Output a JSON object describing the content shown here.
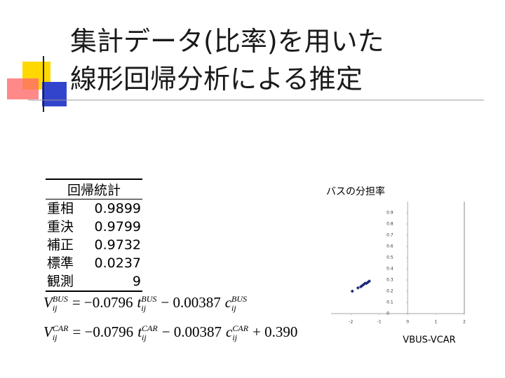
{
  "title": [
    "集計データ(比率)を用いた",
    "線形回帰分析による推定"
  ],
  "table": {
    "header": "回帰統計",
    "rows": [
      [
        "重相",
        "0.9899"
      ],
      [
        "重決",
        "0.9799"
      ],
      [
        "補正",
        "0.9732"
      ],
      [
        "標準",
        "0.0237"
      ],
      [
        "観測",
        "9"
      ]
    ]
  },
  "equations": [
    [
      {
        "t": "V",
        "sub": "ij",
        "sup": "BUS"
      },
      {
        "t": "= −0.0796"
      },
      {
        "t": "t",
        "sub": "ij",
        "sup": "BUS"
      },
      {
        "t": "− 0.00387"
      },
      {
        "t": "c",
        "sub": "ij",
        "sup": "BUS"
      }
    ],
    [
      {
        "t": "V",
        "sub": "ij",
        "sup": "CAR"
      },
      {
        "t": "= −0.0796"
      },
      {
        "t": "t",
        "sub": "ij",
        "sup": "CAR"
      },
      {
        "t": "− 0.00387"
      },
      {
        "t": "c",
        "sub": "ij",
        "sup": "CAR"
      },
      {
        "t": "+ 0.390"
      }
    ]
  ],
  "chart_data": {
    "type": "scatter",
    "title": "バスの分担率",
    "x_label": "VBUS-VCAR",
    "x": [
      -1.95,
      -1.75,
      -1.65,
      -1.6,
      -1.55,
      -1.5,
      -1.45,
      -1.4,
      -1.35
    ],
    "values": [
      0.2,
      0.23,
      0.24,
      0.25,
      0.26,
      0.27,
      0.27,
      0.28,
      0.29
    ],
    "color": "#1f2a7a",
    "xlim": [
      -2.7,
      2
    ],
    "xticks": [
      -2,
      -1,
      0,
      1,
      2
    ],
    "ylim": [
      0,
      1
    ],
    "yticks": [
      0,
      0.1,
      0.2,
      0.3,
      0.4,
      0.5,
      0.6,
      0.7,
      0.8,
      0.9
    ]
  }
}
